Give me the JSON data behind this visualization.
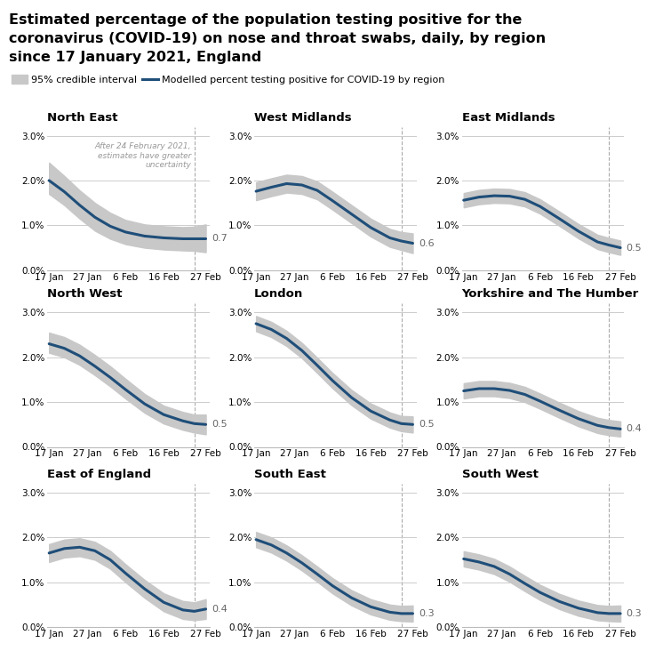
{
  "title_lines": [
    "Estimated percentage of the population testing positive for the",
    "coronavirus (COVID-19) on nose and throat swabs, daily, by region",
    "since 17 January 2021, England"
  ],
  "legend_ci": "95% credible interval",
  "legend_line": "Modelled percent testing positive for COVID-19 by region",
  "regions": [
    "North East",
    "West Midlands",
    "East Midlands",
    "North West",
    "London",
    "Yorkshire and The Humber",
    "East of England",
    "South East",
    "South West"
  ],
  "end_labels": [
    0.7,
    0.6,
    0.5,
    0.5,
    0.5,
    0.4,
    0.4,
    0.3,
    0.3
  ],
  "x_ticks": [
    0,
    10,
    20,
    30,
    41
  ],
  "x_tick_labels": [
    "17 Jan",
    "27 Jan",
    "6 Feb",
    "16 Feb",
    "27 Feb"
  ],
  "vline_x": 38,
  "line_color": "#1f4e79",
  "ci_color": "#c8c8c8",
  "annotation_text": "After 24 February 2021,\nestimates have greater\nuncertainty",
  "annotation_color": "#999999",
  "ylim": [
    0.0,
    3.2
  ],
  "yticks": [
    0.0,
    1.0,
    2.0,
    3.0
  ],
  "ytick_labels": [
    "0.0%",
    "1.0%",
    "2.0%",
    "3.0%"
  ],
  "bg_color": "#ffffff",
  "grid_color": "#cccccc",
  "regions_data": {
    "North East": {
      "x": [
        0,
        4,
        8,
        12,
        16,
        20,
        25,
        30,
        35,
        38,
        41
      ],
      "y": [
        2.0,
        1.75,
        1.45,
        1.18,
        0.98,
        0.85,
        0.76,
        0.72,
        0.7,
        0.7,
        0.7
      ],
      "y_low": [
        1.7,
        1.45,
        1.15,
        0.88,
        0.7,
        0.58,
        0.5,
        0.46,
        0.44,
        0.43,
        0.4
      ],
      "y_high": [
        2.4,
        2.1,
        1.78,
        1.5,
        1.28,
        1.12,
        1.02,
        0.98,
        0.96,
        0.97,
        1.02
      ]
    },
    "West Midlands": {
      "x": [
        0,
        4,
        8,
        12,
        16,
        20,
        25,
        30,
        35,
        38,
        41
      ],
      "y": [
        1.76,
        1.85,
        1.93,
        1.9,
        1.78,
        1.55,
        1.25,
        0.95,
        0.72,
        0.65,
        0.6
      ],
      "y_low": [
        1.56,
        1.65,
        1.73,
        1.7,
        1.58,
        1.35,
        1.05,
        0.75,
        0.52,
        0.45,
        0.38
      ],
      "y_high": [
        1.96,
        2.05,
        2.13,
        2.1,
        1.98,
        1.75,
        1.45,
        1.15,
        0.92,
        0.85,
        0.82
      ]
    },
    "East Midlands": {
      "x": [
        0,
        4,
        8,
        12,
        16,
        20,
        25,
        30,
        35,
        38,
        41
      ],
      "y": [
        1.56,
        1.63,
        1.66,
        1.65,
        1.58,
        1.42,
        1.15,
        0.87,
        0.63,
        0.56,
        0.5
      ],
      "y_low": [
        1.4,
        1.47,
        1.5,
        1.49,
        1.42,
        1.26,
        0.99,
        0.71,
        0.47,
        0.4,
        0.34
      ],
      "y_high": [
        1.72,
        1.79,
        1.82,
        1.81,
        1.74,
        1.58,
        1.31,
        1.03,
        0.79,
        0.72,
        0.66
      ]
    },
    "North West": {
      "x": [
        0,
        4,
        8,
        12,
        16,
        20,
        25,
        30,
        35,
        38,
        41
      ],
      "y": [
        2.3,
        2.2,
        2.03,
        1.8,
        1.55,
        1.28,
        0.96,
        0.72,
        0.58,
        0.52,
        0.5
      ],
      "y_low": [
        2.1,
        2.0,
        1.83,
        1.6,
        1.35,
        1.08,
        0.76,
        0.52,
        0.38,
        0.32,
        0.28
      ],
      "y_high": [
        2.55,
        2.45,
        2.28,
        2.05,
        1.8,
        1.52,
        1.18,
        0.92,
        0.78,
        0.72,
        0.72
      ]
    },
    "London": {
      "x": [
        0,
        4,
        8,
        12,
        16,
        20,
        25,
        30,
        35,
        38,
        41
      ],
      "y": [
        2.75,
        2.62,
        2.42,
        2.15,
        1.82,
        1.48,
        1.1,
        0.8,
        0.6,
        0.52,
        0.5
      ],
      "y_low": [
        2.58,
        2.45,
        2.25,
        1.98,
        1.65,
        1.31,
        0.93,
        0.63,
        0.43,
        0.35,
        0.32
      ],
      "y_high": [
        2.92,
        2.79,
        2.59,
        2.32,
        1.99,
        1.65,
        1.27,
        0.97,
        0.77,
        0.69,
        0.68
      ]
    },
    "Yorkshire and The Humber": {
      "x": [
        0,
        4,
        8,
        12,
        16,
        20,
        25,
        30,
        35,
        38,
        41
      ],
      "y": [
        1.25,
        1.3,
        1.3,
        1.26,
        1.17,
        1.02,
        0.82,
        0.63,
        0.48,
        0.43,
        0.4
      ],
      "y_low": [
        1.08,
        1.13,
        1.13,
        1.09,
        1.0,
        0.85,
        0.65,
        0.46,
        0.31,
        0.26,
        0.23
      ],
      "y_high": [
        1.42,
        1.47,
        1.47,
        1.43,
        1.34,
        1.19,
        0.99,
        0.8,
        0.65,
        0.6,
        0.57
      ]
    },
    "East of England": {
      "x": [
        0,
        4,
        8,
        12,
        16,
        20,
        25,
        30,
        35,
        38,
        41
      ],
      "y": [
        1.65,
        1.75,
        1.78,
        1.7,
        1.5,
        1.2,
        0.85,
        0.55,
        0.38,
        0.35,
        0.4
      ],
      "y_low": [
        1.45,
        1.55,
        1.58,
        1.5,
        1.3,
        1.0,
        0.65,
        0.35,
        0.18,
        0.15,
        0.18
      ],
      "y_high": [
        1.85,
        1.95,
        1.98,
        1.9,
        1.7,
        1.4,
        1.05,
        0.75,
        0.58,
        0.55,
        0.62
      ]
    },
    "South East": {
      "x": [
        0,
        4,
        8,
        12,
        16,
        20,
        25,
        30,
        35,
        38,
        41
      ],
      "y": [
        1.95,
        1.83,
        1.65,
        1.43,
        1.18,
        0.92,
        0.65,
        0.45,
        0.33,
        0.3,
        0.3
      ],
      "y_low": [
        1.78,
        1.66,
        1.48,
        1.26,
        1.01,
        0.75,
        0.48,
        0.28,
        0.16,
        0.13,
        0.12
      ],
      "y_high": [
        2.12,
        2.0,
        1.82,
        1.6,
        1.35,
        1.09,
        0.82,
        0.62,
        0.5,
        0.47,
        0.48
      ]
    },
    "South West": {
      "x": [
        0,
        4,
        8,
        12,
        16,
        20,
        25,
        30,
        35,
        38,
        41
      ],
      "y": [
        1.52,
        1.45,
        1.35,
        1.18,
        0.97,
        0.77,
        0.57,
        0.42,
        0.32,
        0.3,
        0.3
      ],
      "y_low": [
        1.35,
        1.28,
        1.18,
        1.01,
        0.8,
        0.6,
        0.4,
        0.25,
        0.15,
        0.13,
        0.12
      ],
      "y_high": [
        1.69,
        1.62,
        1.52,
        1.35,
        1.14,
        0.94,
        0.74,
        0.59,
        0.49,
        0.47,
        0.48
      ]
    }
  }
}
